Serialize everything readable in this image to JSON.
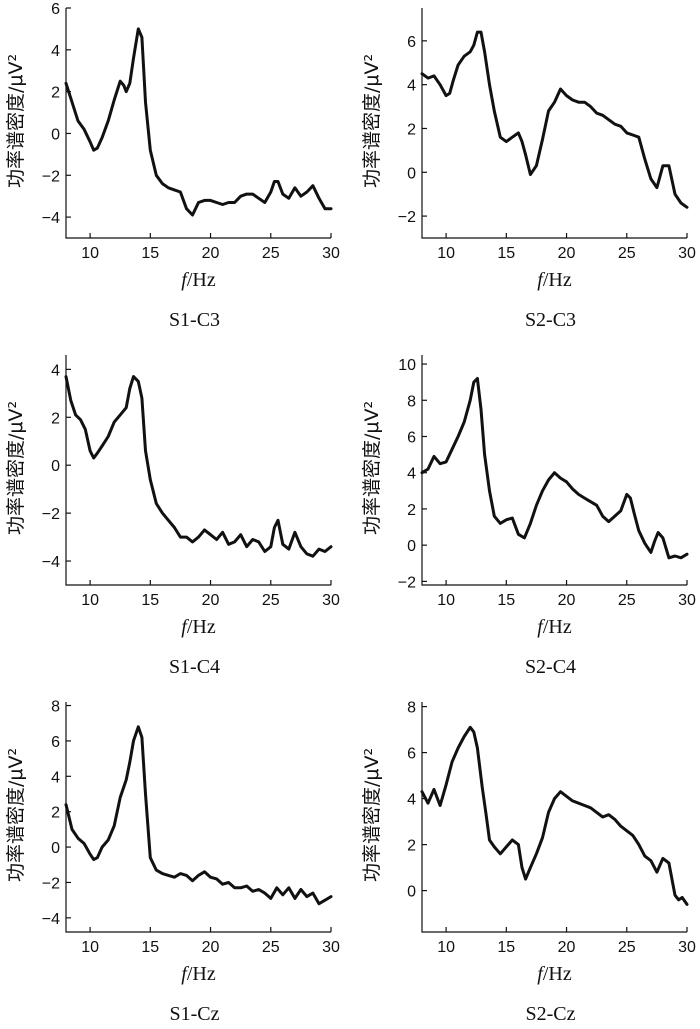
{
  "chart_data": [
    {
      "id": "S1-C3",
      "type": "line",
      "caption": "S1-C3",
      "xlabel_italic": "f",
      "xlabel_rest": "/Hz",
      "ylabel": "功率谱密度/μV²",
      "xlim": [
        8,
        30
      ],
      "ylim": [
        -5,
        6
      ],
      "xticks": [
        10,
        15,
        20,
        25,
        30
      ],
      "yticks": [
        -4,
        -2,
        0,
        2,
        4,
        6
      ],
      "x": [
        8,
        8.5,
        9,
        9.5,
        10,
        10.3,
        10.6,
        11,
        11.5,
        12,
        12.5,
        12.8,
        13,
        13.3,
        13.6,
        14,
        14.3,
        14.6,
        15,
        15.5,
        16,
        16.5,
        17,
        17.5,
        18,
        18.5,
        19,
        19.5,
        20,
        20.5,
        21,
        21.5,
        22,
        22.5,
        23,
        23.5,
        24,
        24.5,
        25,
        25.3,
        25.6,
        26,
        26.5,
        27,
        27.5,
        28,
        28.5,
        29,
        29.5,
        30
      ],
      "y": [
        2.4,
        1.5,
        0.6,
        0.2,
        -0.4,
        -0.8,
        -0.7,
        -0.2,
        0.6,
        1.6,
        2.5,
        2.3,
        2.0,
        2.4,
        3.6,
        5.0,
        4.6,
        1.5,
        -0.8,
        -2.0,
        -2.4,
        -2.6,
        -2.7,
        -2.8,
        -3.6,
        -3.9,
        -3.3,
        -3.2,
        -3.2,
        -3.3,
        -3.4,
        -3.3,
        -3.3,
        -3.0,
        -2.9,
        -2.9,
        -3.1,
        -3.3,
        -2.8,
        -2.3,
        -2.3,
        -2.9,
        -3.1,
        -2.6,
        -3.0,
        -2.8,
        -2.5,
        -3.1,
        -3.6,
        -3.6
      ]
    },
    {
      "id": "S2-C3",
      "type": "line",
      "caption": "S2-C3",
      "xlabel_italic": "f",
      "xlabel_rest": "/Hz",
      "ylabel": "功率谱密度/μV²",
      "xlim": [
        8,
        30
      ],
      "ylim": [
        -3,
        7.5
      ],
      "xticks": [
        10,
        15,
        20,
        25,
        30
      ],
      "yticks": [
        -2,
        0,
        2,
        4,
        6
      ],
      "x": [
        8,
        8.5,
        9,
        9.5,
        10,
        10.3,
        10.6,
        11,
        11.5,
        12,
        12.3,
        12.6,
        12.9,
        13.2,
        13.6,
        14,
        14.5,
        15,
        15.5,
        16,
        16.3,
        16.6,
        17,
        17.5,
        18,
        18.5,
        19,
        19.5,
        20,
        20.5,
        21,
        21.5,
        22,
        22.5,
        23,
        23.5,
        24,
        24.5,
        25,
        25.5,
        26,
        26.5,
        27,
        27.5,
        28,
        28.5,
        29,
        29.5,
        30
      ],
      "y": [
        4.5,
        4.3,
        4.4,
        4.0,
        3.5,
        3.6,
        4.2,
        4.9,
        5.3,
        5.5,
        5.8,
        6.4,
        6.4,
        5.5,
        4.0,
        2.8,
        1.6,
        1.4,
        1.6,
        1.8,
        1.4,
        0.8,
        -0.1,
        0.3,
        1.5,
        2.8,
        3.2,
        3.8,
        3.5,
        3.3,
        3.2,
        3.2,
        3.0,
        2.7,
        2.6,
        2.4,
        2.2,
        2.1,
        1.8,
        1.7,
        1.6,
        0.6,
        -0.3,
        -0.7,
        0.3,
        0.3,
        -1.0,
        -1.4,
        -1.6
      ]
    },
    {
      "id": "S1-C4",
      "type": "line",
      "caption": "S1-C4",
      "xlabel_italic": "f",
      "xlabel_rest": "/Hz",
      "ylabel": "功率谱密度/μV²",
      "xlim": [
        8,
        30
      ],
      "ylim": [
        -5,
        4.6
      ],
      "xticks": [
        10,
        15,
        20,
        25,
        30
      ],
      "yticks": [
        -4,
        -2,
        0,
        2,
        4
      ],
      "x": [
        8,
        8.4,
        8.8,
        9.2,
        9.6,
        10,
        10.3,
        10.6,
        11,
        11.5,
        12,
        12.5,
        13,
        13.3,
        13.6,
        14,
        14.3,
        14.6,
        15,
        15.5,
        16,
        16.5,
        17,
        17.5,
        18,
        18.5,
        19,
        19.5,
        20,
        20.5,
        21,
        21.5,
        22,
        22.5,
        23,
        23.5,
        24,
        24.5,
        25,
        25.3,
        25.6,
        26,
        26.5,
        27,
        27.5,
        28,
        28.5,
        29,
        29.5,
        30
      ],
      "y": [
        3.7,
        2.7,
        2.1,
        1.9,
        1.5,
        0.6,
        0.3,
        0.5,
        0.8,
        1.2,
        1.8,
        2.1,
        2.4,
        3.2,
        3.7,
        3.5,
        2.8,
        0.6,
        -0.6,
        -1.6,
        -2.0,
        -2.3,
        -2.6,
        -3.0,
        -3.0,
        -3.2,
        -3.0,
        -2.7,
        -2.9,
        -3.1,
        -2.8,
        -3.3,
        -3.2,
        -2.9,
        -3.4,
        -3.1,
        -3.2,
        -3.6,
        -3.4,
        -2.6,
        -2.3,
        -3.3,
        -3.5,
        -2.8,
        -3.4,
        -3.7,
        -3.8,
        -3.5,
        -3.6,
        -3.4
      ]
    },
    {
      "id": "S2-C4",
      "type": "line",
      "caption": "S2-C4",
      "xlabel_italic": "f",
      "xlabel_rest": "/Hz",
      "ylabel": "功率谱密度/μV²",
      "xlim": [
        8,
        30
      ],
      "ylim": [
        -2.2,
        10.5
      ],
      "xticks": [
        10,
        15,
        20,
        25,
        30
      ],
      "yticks": [
        -2,
        0,
        2,
        4,
        6,
        8,
        10
      ],
      "x": [
        8,
        8.5,
        9,
        9.5,
        10,
        10.5,
        11,
        11.5,
        12,
        12.3,
        12.6,
        12.9,
        13.2,
        13.6,
        14,
        14.5,
        15,
        15.5,
        16,
        16.5,
        17,
        17.5,
        18,
        18.5,
        19,
        19.5,
        20,
        20.5,
        21,
        21.5,
        22,
        22.5,
        23,
        23.5,
        24,
        24.5,
        25,
        25.3,
        25.6,
        26,
        26.5,
        27,
        27.3,
        27.6,
        28,
        28.5,
        29,
        29.5,
        30
      ],
      "y": [
        4.0,
        4.2,
        4.9,
        4.5,
        4.6,
        5.3,
        6.0,
        6.8,
        8.0,
        9.0,
        9.2,
        7.5,
        5.0,
        3.0,
        1.6,
        1.2,
        1.4,
        1.5,
        0.6,
        0.4,
        1.2,
        2.2,
        3.0,
        3.6,
        4.0,
        3.7,
        3.5,
        3.1,
        2.8,
        2.6,
        2.4,
        2.2,
        1.6,
        1.3,
        1.6,
        1.9,
        2.8,
        2.6,
        1.8,
        0.8,
        0.1,
        -0.4,
        0.2,
        0.7,
        0.4,
        -0.7,
        -0.6,
        -0.7,
        -0.5
      ]
    },
    {
      "id": "S1-Cz",
      "type": "line",
      "caption": "S1-Cz",
      "xlabel_italic": "f",
      "xlabel_rest": "/Hz",
      "ylabel": "功率谱密度/μV²",
      "xlim": [
        8,
        30
      ],
      "ylim": [
        -4.8,
        8.2
      ],
      "xticks": [
        10,
        15,
        20,
        25,
        30
      ],
      "yticks": [
        -4,
        -2,
        0,
        2,
        4,
        6,
        8
      ],
      "x": [
        8,
        8.5,
        9,
        9.5,
        10,
        10.3,
        10.6,
        11,
        11.5,
        12,
        12.5,
        13,
        13.3,
        13.6,
        14,
        14.3,
        14.6,
        15,
        15.5,
        16,
        16.5,
        17,
        17.5,
        18,
        18.5,
        19,
        19.5,
        20,
        20.5,
        21,
        21.5,
        22,
        22.5,
        23,
        23.5,
        24,
        24.5,
        25,
        25.5,
        26,
        26.5,
        27,
        27.5,
        28,
        28.5,
        29,
        29.5,
        30
      ],
      "y": [
        2.4,
        1.0,
        0.5,
        0.2,
        -0.4,
        -0.7,
        -0.6,
        0.0,
        0.4,
        1.2,
        2.8,
        3.8,
        4.8,
        6.0,
        6.8,
        6.2,
        3.0,
        -0.6,
        -1.3,
        -1.5,
        -1.6,
        -1.7,
        -1.5,
        -1.6,
        -1.9,
        -1.6,
        -1.4,
        -1.7,
        -1.8,
        -2.1,
        -2.0,
        -2.3,
        -2.3,
        -2.2,
        -2.5,
        -2.4,
        -2.6,
        -2.9,
        -2.3,
        -2.7,
        -2.3,
        -2.9,
        -2.4,
        -2.8,
        -2.6,
        -3.2,
        -3.0,
        -2.8
      ]
    },
    {
      "id": "S2-Cz",
      "type": "line",
      "caption": "S2-Cz",
      "xlabel_italic": "f",
      "xlabel_rest": "/Hz",
      "ylabel": "功率谱密度/μV²",
      "xlim": [
        8,
        30
      ],
      "ylim": [
        -1.8,
        8.2
      ],
      "xticks": [
        10,
        15,
        20,
        25,
        30
      ],
      "yticks": [
        0,
        2,
        4,
        6,
        8
      ],
      "x": [
        8,
        8.5,
        9,
        9.5,
        10,
        10.5,
        11,
        11.5,
        12,
        12.3,
        12.6,
        13,
        13.3,
        13.6,
        14,
        14.5,
        15,
        15.5,
        16,
        16.3,
        16.6,
        17,
        17.5,
        18,
        18.5,
        19,
        19.5,
        20,
        20.5,
        21,
        21.5,
        22,
        22.5,
        23,
        23.5,
        24,
        24.5,
        25,
        25.5,
        26,
        26.5,
        27,
        27.5,
        28,
        28.5,
        29,
        29.3,
        29.6,
        30
      ],
      "y": [
        4.3,
        3.8,
        4.4,
        3.7,
        4.6,
        5.6,
        6.2,
        6.7,
        7.1,
        6.9,
        6.2,
        4.5,
        3.4,
        2.2,
        1.9,
        1.6,
        1.9,
        2.2,
        2.0,
        1.0,
        0.5,
        1.0,
        1.6,
        2.3,
        3.4,
        4.0,
        4.3,
        4.1,
        3.9,
        3.8,
        3.7,
        3.6,
        3.4,
        3.2,
        3.3,
        3.1,
        2.8,
        2.6,
        2.4,
        2.0,
        1.5,
        1.3,
        0.8,
        1.4,
        1.2,
        -0.2,
        -0.4,
        -0.3,
        -0.6
      ]
    }
  ]
}
